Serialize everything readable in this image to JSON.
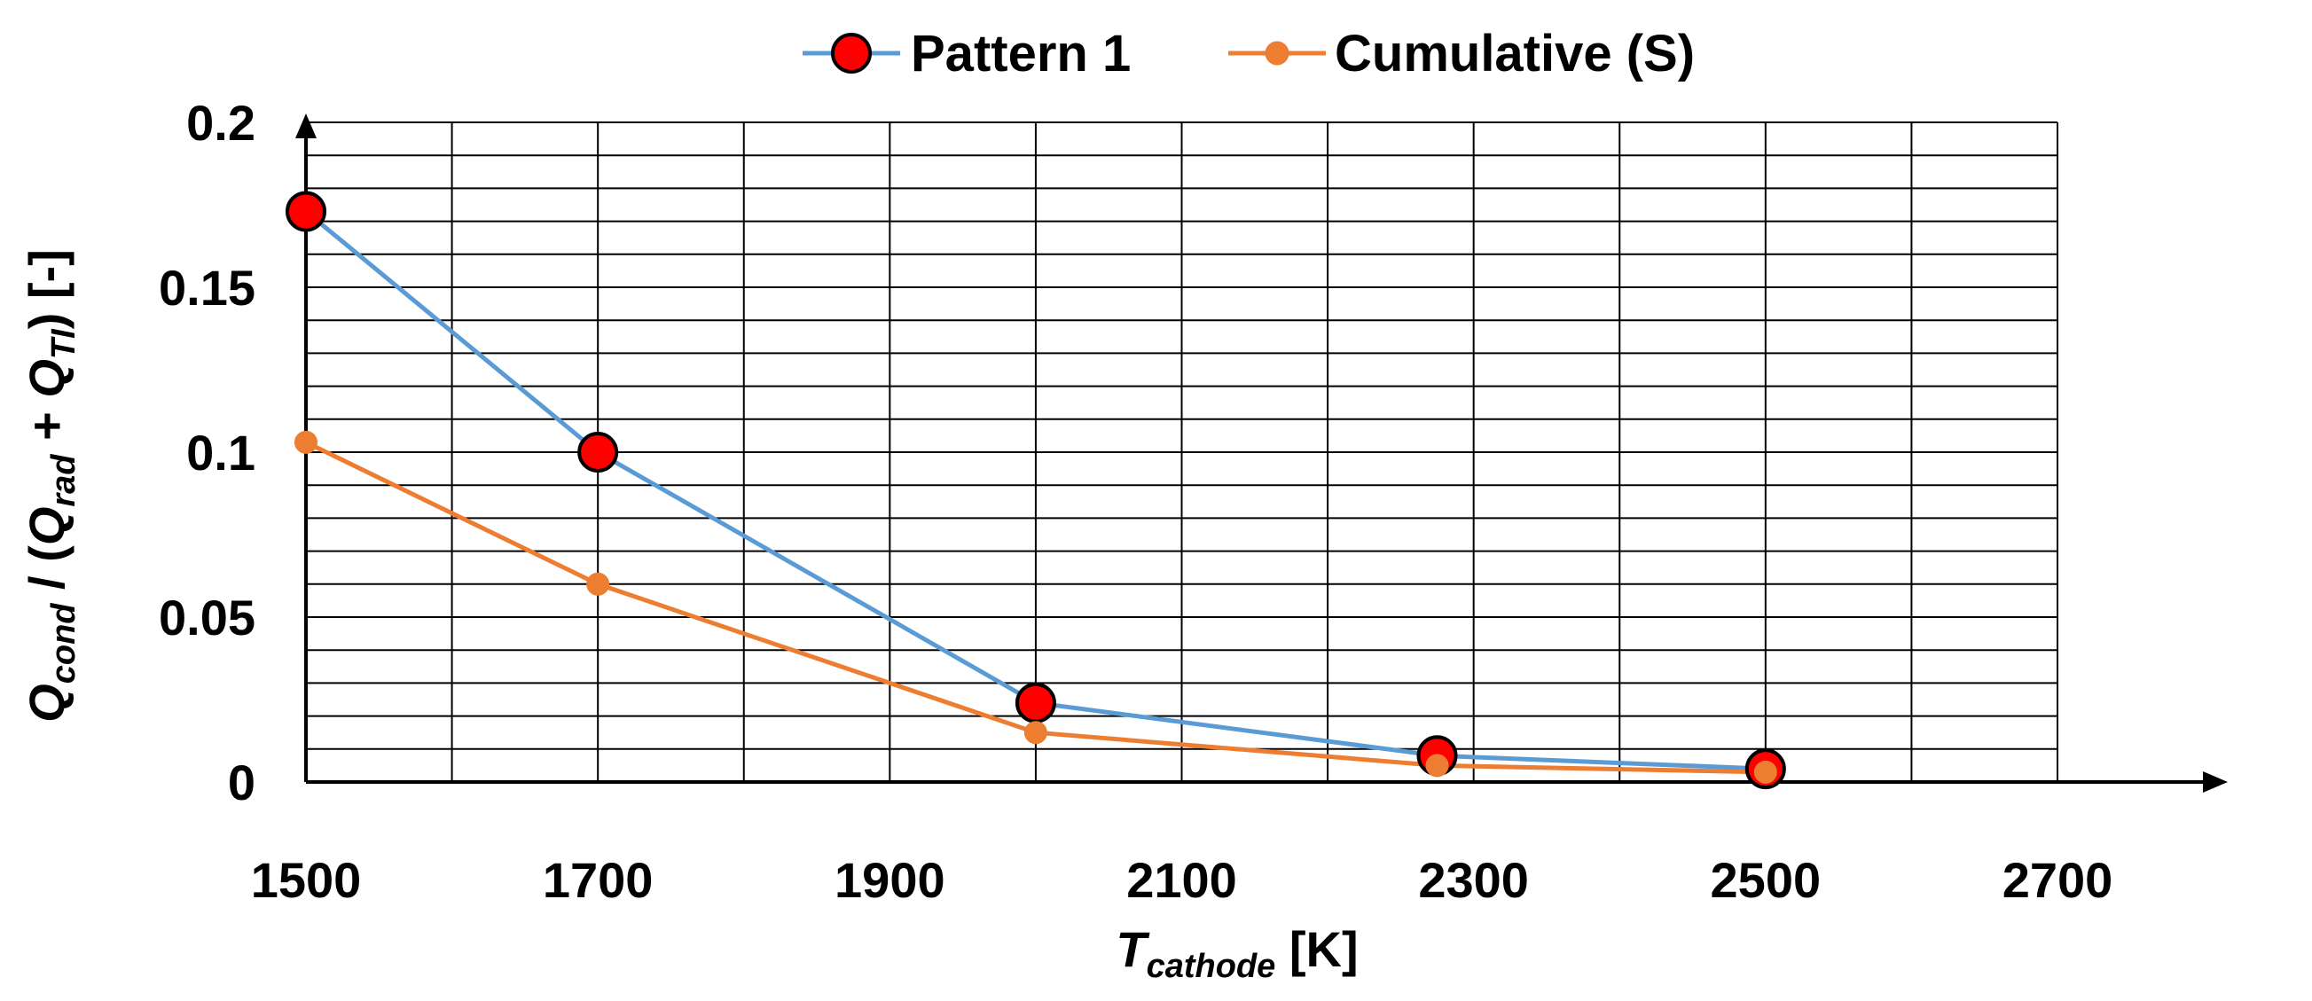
{
  "chart_data": {
    "type": "line",
    "title": "",
    "x": [
      1500,
      1700,
      2000,
      2275,
      2500
    ],
    "series": [
      {
        "name": "Pattern 1",
        "color": "#5b9bd5",
        "marker_fill": "#ff0000",
        "marker_stroke": "#000000",
        "values": [
          0.173,
          0.1,
          0.024,
          0.008,
          0.004
        ]
      },
      {
        "name": "Cumulative (S)",
        "color": "#ed7d31",
        "marker_fill": "#ed7d31",
        "marker_stroke": "#ed7d31",
        "values": [
          0.103,
          0.06,
          0.015,
          0.005,
          0.003
        ]
      }
    ],
    "xlim": [
      1500,
      2700
    ],
    "ylim": [
      0,
      0.2
    ],
    "x_major_ticks": [
      1500,
      1700,
      1900,
      2100,
      2300,
      2500,
      2700
    ],
    "x_tick_labels": [
      "1500",
      "1700",
      "1900",
      "2100",
      "2300",
      "2500",
      "2700"
    ],
    "x_grid_step": 100,
    "y_major_ticks": [
      0,
      0.05,
      0.1,
      0.15,
      0.2
    ],
    "y_tick_labels": [
      "0",
      "0.05",
      "0.1",
      "0.15",
      "0.2"
    ],
    "y_grid_step": 0.01,
    "grid": true,
    "legend_position": "top",
    "xlabel": {
      "main": "T",
      "sub": "cathode",
      "unit": " [K]"
    },
    "ylabel": {
      "q1": "Q",
      "q1_sub": "cond",
      "mid1": " / (",
      "q2": "Q",
      "q2_sub": "rad",
      "mid2": " + ",
      "q3": "Q",
      "q3_sub": "TI",
      "end": ") [-]"
    }
  }
}
